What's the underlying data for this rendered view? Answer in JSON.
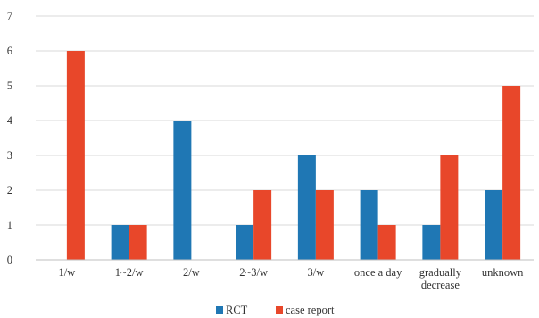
{
  "chart_data": {
    "type": "bar",
    "categories": [
      [
        "1/w"
      ],
      [
        "1~2/w"
      ],
      [
        "2/w"
      ],
      [
        "2~3/w"
      ],
      [
        "3/w"
      ],
      [
        "once a day"
      ],
      [
        "gradually",
        "decrease"
      ],
      [
        "unknown"
      ]
    ],
    "series": [
      {
        "name": "RCT",
        "color": "#1f77b4",
        "values": [
          0,
          1,
          4,
          1,
          3,
          2,
          1,
          2
        ]
      },
      {
        "name": "case report",
        "color": "#e8472a",
        "values": [
          6,
          1,
          0,
          2,
          2,
          1,
          3,
          5
        ]
      }
    ],
    "ylim": [
      0,
      7
    ],
    "yticks": [
      0,
      1,
      2,
      3,
      4,
      5,
      6,
      7
    ],
    "grid": true,
    "legend_position": "bottom-center",
    "title": "",
    "xlabel": "",
    "ylabel": ""
  }
}
